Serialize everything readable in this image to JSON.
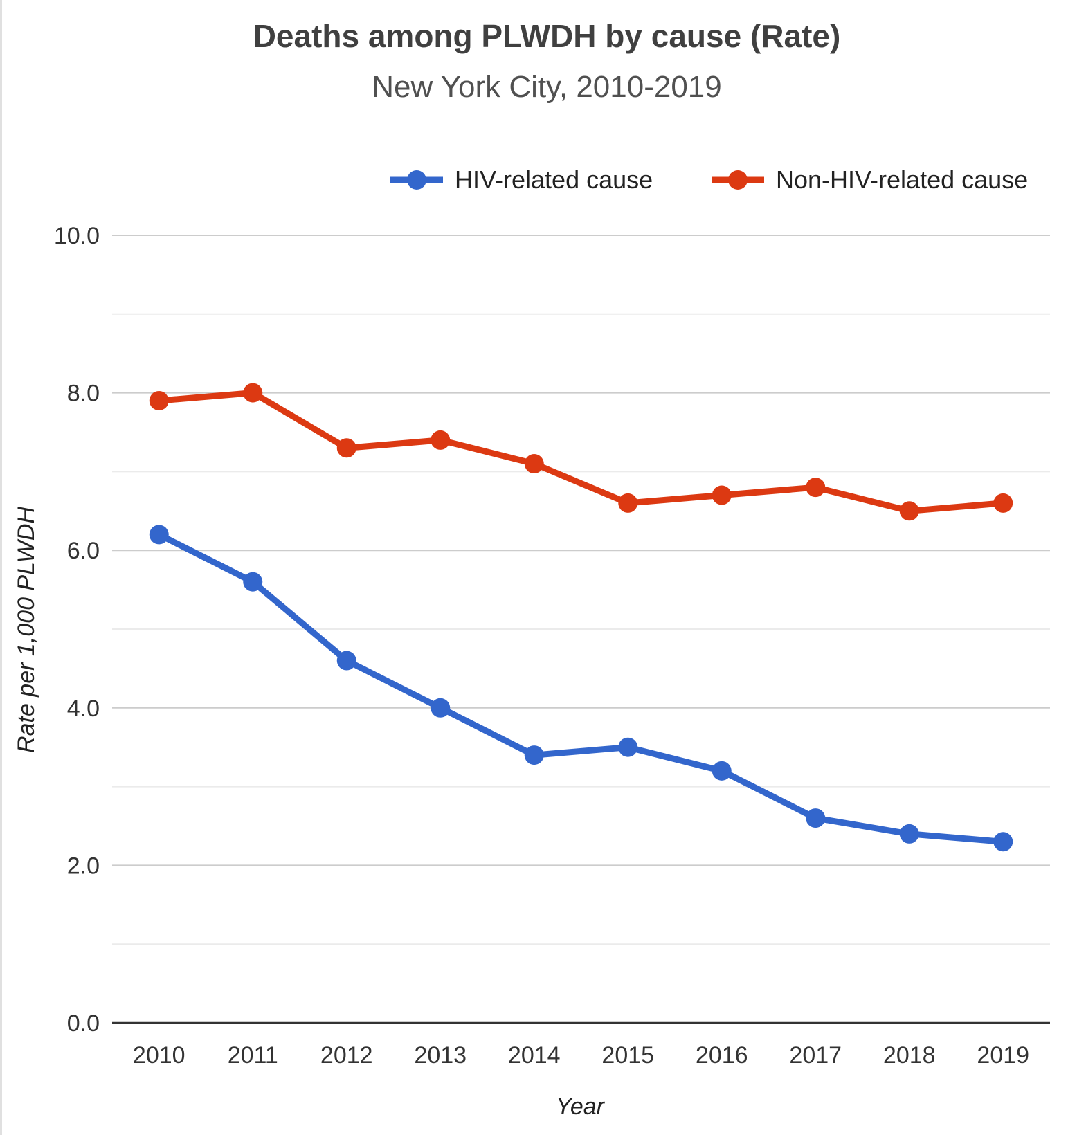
{
  "chart_data": {
    "type": "line",
    "title": "Deaths among PLWDH by cause (Rate)",
    "subtitle": "New York City, 2010-2019",
    "xlabel": "Year",
    "ylabel": "Rate per 1,000 PLWDH",
    "x": [
      "2010",
      "2011",
      "2012",
      "2013",
      "2014",
      "2015",
      "2016",
      "2017",
      "2018",
      "2019"
    ],
    "ylim": [
      0,
      10
    ],
    "yticks": [
      "0.0",
      "2.0",
      "4.0",
      "6.0",
      "8.0",
      "10.0"
    ],
    "minor_grid": [
      1,
      3,
      5,
      7,
      9
    ],
    "grid": true,
    "legend_position": "top-right",
    "series": [
      {
        "name": "HIV-related cause",
        "color": "#3366cc",
        "values": [
          6.2,
          5.6,
          4.6,
          4.0,
          3.4,
          3.5,
          3.2,
          2.6,
          2.4,
          2.3
        ]
      },
      {
        "name": "Non-HIV-related cause",
        "color": "#dc3912",
        "values": [
          7.9,
          8.0,
          7.3,
          7.4,
          7.1,
          6.6,
          6.7,
          6.8,
          6.5,
          6.6
        ]
      }
    ]
  }
}
